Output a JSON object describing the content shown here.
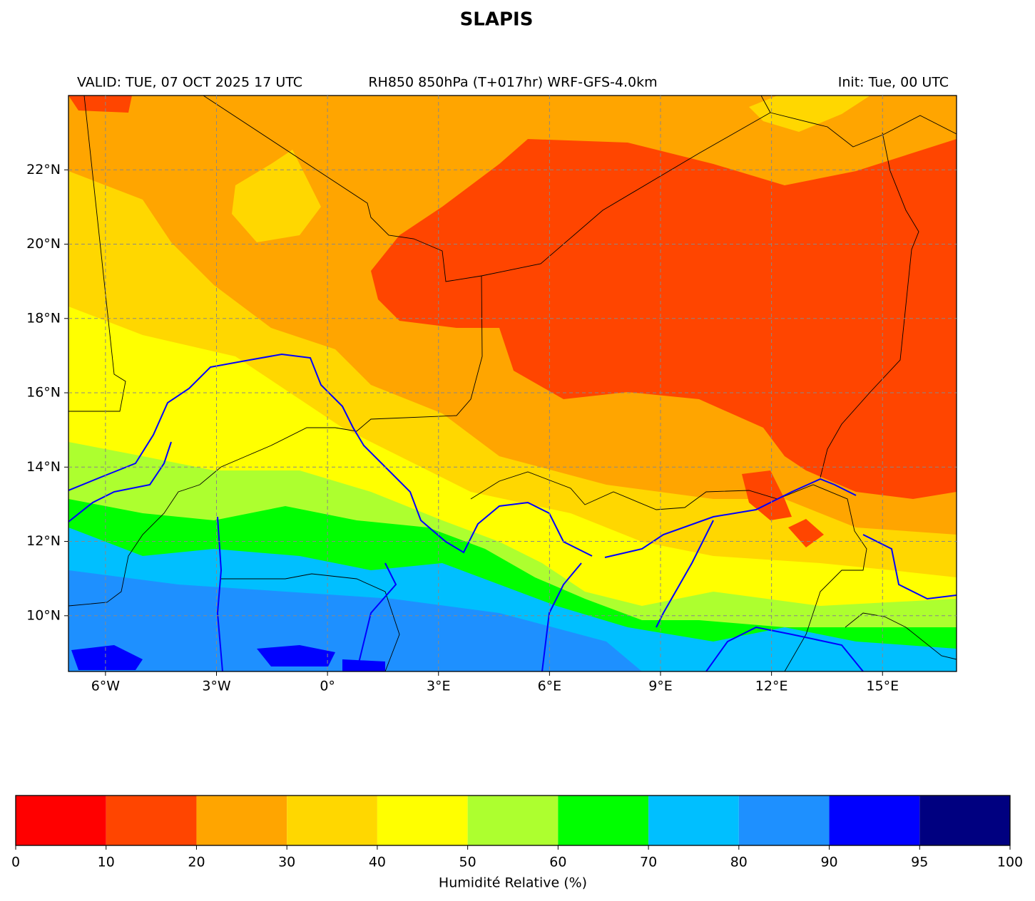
{
  "header": {
    "title": "SLAPIS",
    "valid": "VALID: TUE, 07 OCT 2025 17 UTC",
    "product": "RH850 850hPa (T+017hr) WRF-GFS-4.0km",
    "init": "Init: Tue, 00 UTC"
  },
  "map": {
    "xlim": [
      -7,
      17
    ],
    "ylim": [
      8.5,
      24
    ],
    "xticks": [
      {
        "value": -6,
        "label": "6°W"
      },
      {
        "value": -3,
        "label": "3°W"
      },
      {
        "value": 0,
        "label": "0°"
      },
      {
        "value": 3,
        "label": "3°E"
      },
      {
        "value": 6,
        "label": "6°E"
      },
      {
        "value": 9,
        "label": "9°E"
      },
      {
        "value": 12,
        "label": "12°E"
      },
      {
        "value": 15,
        "label": "15°E"
      }
    ],
    "yticks": [
      {
        "value": 10,
        "label": "10°N"
      },
      {
        "value": 12,
        "label": "12°N"
      },
      {
        "value": 14,
        "label": "14°N"
      },
      {
        "value": 16,
        "label": "16°N"
      },
      {
        "value": 18,
        "label": "18°N"
      },
      {
        "value": 20,
        "label": "20°N"
      },
      {
        "value": 22,
        "label": "22°N"
      }
    ],
    "grid": true
  },
  "colorbar": {
    "boundaries": [
      0,
      10,
      20,
      30,
      40,
      50,
      60,
      70,
      80,
      90,
      95,
      100
    ],
    "colors": [
      "#ff0000",
      "#ff4500",
      "#ffa500",
      "#ffd700",
      "#ffff00",
      "#adff2f",
      "#00ff00",
      "#00bfff",
      "#1e90ff",
      "#0000ff",
      "#000080"
    ],
    "label": "Humidité Relative (%)"
  }
}
